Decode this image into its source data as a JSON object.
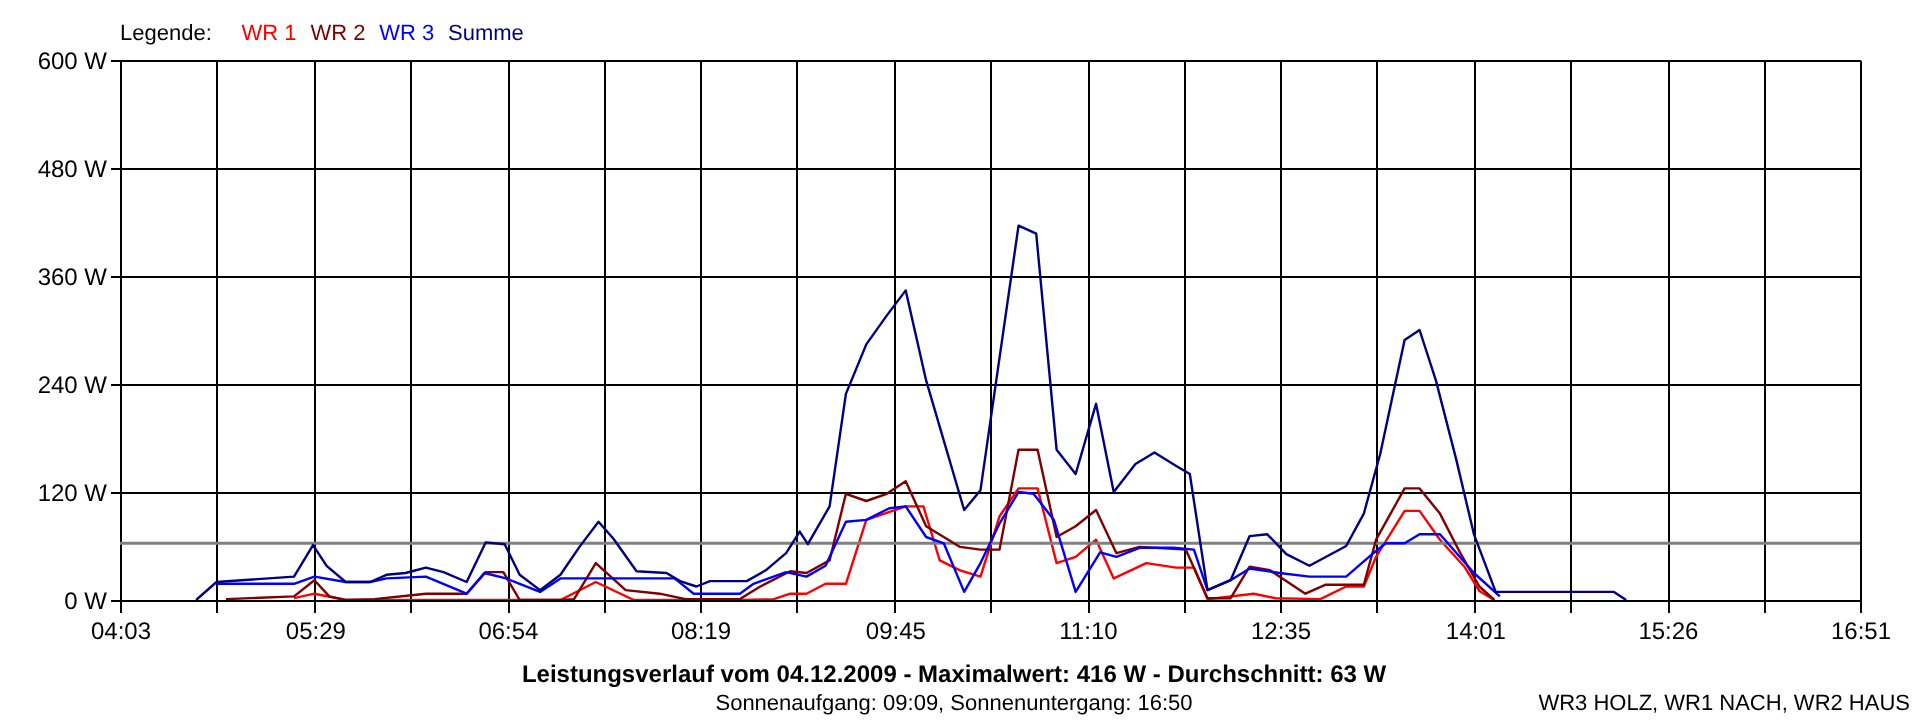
{
  "chart_data": {
    "type": "line",
    "title": "Leistungsverlauf vom 04.12.2009 - Maximalwert: 416 W - Durchschnitt: 63 W",
    "subtitle": "Sonnenaufgang: 09:09, Sonnenuntergang: 16:50",
    "annotations": [
      "WR3 HOLZ, WR1 NACH, WR2 HAUS"
    ],
    "legend_title": "Legende:",
    "legend": "top left",
    "grid": true,
    "line_style": "solid",
    "marker": "none",
    "xlim": [
      4.05,
      16.85
    ],
    "xticks": [
      {
        "value": 4.05,
        "label": "04:03"
      },
      {
        "value": 4.7611,
        "label": null
      },
      {
        "value": 5.4833,
        "label": "05:29"
      },
      {
        "value": 6.1833,
        "label": null
      },
      {
        "value": 6.9,
        "label": "06:54"
      },
      {
        "value": 7.6056,
        "label": null
      },
      {
        "value": 8.3167,
        "label": "08:19"
      },
      {
        "value": 9.0278,
        "label": null
      },
      {
        "value": 9.75,
        "label": "09:45"
      },
      {
        "value": 10.45,
        "label": null
      },
      {
        "value": 11.1667,
        "label": "11:10"
      },
      {
        "value": 11.8722,
        "label": null
      },
      {
        "value": 12.5833,
        "label": "12:35"
      },
      {
        "value": 13.2944,
        "label": null
      },
      {
        "value": 14.0167,
        "label": "14:01"
      },
      {
        "value": 14.7167,
        "label": null
      },
      {
        "value": 15.4333,
        "label": "15:26"
      },
      {
        "value": 16.1389,
        "label": null
      },
      {
        "value": 16.85,
        "label": "16:51"
      }
    ],
    "ylim": [
      0,
      600
    ],
    "yticks": [
      {
        "value": 0,
        "label": "0 W"
      },
      {
        "value": 120,
        "label": "120 W"
      },
      {
        "value": 240,
        "label": "240 W"
      },
      {
        "value": 360,
        "label": "360 W"
      },
      {
        "value": 480,
        "label": "480 W"
      },
      {
        "value": 600,
        "label": "600 W"
      }
    ],
    "ref_lines": [
      {
        "axis": "y",
        "value": 63,
        "color": "#808080"
      }
    ],
    "series": [
      {
        "name": "WR 1",
        "color": "#ff0000",
        "x": [
          5.33,
          5.48,
          5.71,
          6.37,
          7.29,
          7.55,
          7.83,
          8.61,
          8.86,
          8.98,
          9.1,
          9.24,
          9.39,
          9.54,
          9.83,
          9.96,
          10.08,
          10.23,
          10.38,
          10.52,
          10.66,
          10.8,
          10.94,
          11.08,
          11.23,
          11.36,
          11.6,
          11.82,
          11.95,
          12.05,
          12.39,
          12.55,
          12.88,
          13.07,
          13.2,
          13.29,
          13.5,
          13.61,
          13.76,
          13.94,
          14.05,
          14.16
        ],
        "values": [
          2,
          7,
          0,
          0,
          0,
          20,
          0,
          0,
          1,
          7,
          7,
          18,
          18,
          89,
          104,
          104,
          44,
          33,
          26,
          93,
          124,
          124,
          41,
          48,
          67,
          24,
          41,
          36,
          36,
          1,
          7,
          2,
          1,
          15,
          15,
          48,
          99,
          99,
          67,
          37,
          10,
          0
        ]
      },
      {
        "name": "WR 2",
        "color": "#800000",
        "x": [
          4.83,
          5.33,
          5.48,
          5.59,
          5.71,
          5.92,
          6.3,
          6.6,
          6.74,
          6.87,
          6.99,
          7.29,
          7.39,
          7.55,
          7.77,
          8.02,
          8.21,
          8.61,
          8.76,
          8.98,
          9.1,
          9.27,
          9.39,
          9.54,
          9.69,
          9.83,
          9.98,
          10.23,
          10.38,
          10.52,
          10.66,
          10.8,
          10.94,
          11.08,
          11.23,
          11.38,
          11.55,
          11.89,
          12.05,
          12.22,
          12.36,
          12.51,
          12.77,
          12.92,
          13.07,
          13.2,
          13.29,
          13.5,
          13.61,
          13.76,
          13.91,
          14.05,
          14.16
        ],
        "values": [
          1,
          4,
          22,
          4,
          0,
          1,
          7,
          7,
          31,
          31,
          0,
          0,
          1,
          41,
          11,
          7,
          1,
          1,
          15,
          32,
          30,
          44,
          118,
          110,
          118,
          132,
          82,
          59,
          56,
          56,
          167,
          167,
          70,
          82,
          100,
          52,
          59,
          56,
          2,
          2,
          37,
          33,
          7,
          17,
          17,
          17,
          67,
          124,
          124,
          96,
          52,
          15,
          0
        ]
      },
      {
        "name": "WR 3",
        "color": "#0000ff",
        "x": [
          4.76,
          5.33,
          5.48,
          5.71,
          5.89,
          6.01,
          6.3,
          6.6,
          6.73,
          6.89,
          7.14,
          7.29,
          8.13,
          8.27,
          8.61,
          8.71,
          8.95,
          9.1,
          9.24,
          9.39,
          9.54,
          9.71,
          9.83,
          9.98,
          10.11,
          10.26,
          10.38,
          10.52,
          10.66,
          10.77,
          10.92,
          11.08,
          11.26,
          11.38,
          11.55,
          11.8,
          11.95,
          12.05,
          12.22,
          12.36,
          12.58,
          12.8,
          13.07,
          13.27,
          13.36,
          13.5,
          13.61,
          13.76,
          14.01,
          14.2
        ],
        "values": [
          18,
          18,
          26,
          20,
          20,
          24,
          26,
          7,
          30,
          24,
          9,
          24,
          24,
          7,
          7,
          18,
          31,
          26,
          38,
          87,
          89,
          102,
          104,
          70,
          63,
          9,
          41,
          85,
          120,
          118,
          89,
          9,
          53,
          48,
          58,
          58,
          56,
          11,
          22,
          35,
          30,
          26,
          26,
          52,
          63,
          63,
          73,
          73,
          30,
          4
        ]
      },
      {
        "name": "Summe",
        "color": "#000080",
        "x": [
          4.61,
          4.76,
          5.33,
          5.47,
          5.57,
          5.71,
          5.89,
          6.01,
          6.15,
          6.3,
          6.43,
          6.6,
          6.74,
          6.88,
          6.99,
          7.14,
          7.29,
          7.43,
          7.57,
          7.68,
          7.85,
          8.07,
          8.17,
          8.29,
          8.39,
          8.66,
          8.8,
          8.95,
          9.05,
          9.11,
          9.27,
          9.39,
          9.54,
          9.69,
          9.83,
          9.98,
          10.26,
          10.38,
          10.66,
          10.79,
          10.94,
          11.08,
          11.23,
          11.36,
          11.52,
          11.66,
          11.82,
          11.92,
          12.05,
          12.22,
          12.36,
          12.49,
          12.63,
          12.8,
          13.07,
          13.2,
          13.32,
          13.5,
          13.61,
          13.73,
          13.88,
          14.01,
          14.17,
          15.04,
          15.13
        ],
        "values": [
          0,
          20,
          26,
          61,
          38,
          20,
          20,
          28,
          30,
          36,
          31,
          20,
          64,
          62,
          28,
          11,
          28,
          59,
          87,
          68,
          32,
          30,
          21,
          15,
          21,
          21,
          33,
          52,
          76,
          62,
          104,
          229,
          284,
          316,
          344,
          244,
          100,
          122,
          416,
          407,
          167,
          140,
          218,
          120,
          151,
          164,
          149,
          140,
          11,
          22,
          71,
          73,
          51,
          38,
          60,
          96,
          162,
          289,
          300,
          244,
          156,
          73,
          9,
          9,
          0
        ]
      }
    ]
  }
}
